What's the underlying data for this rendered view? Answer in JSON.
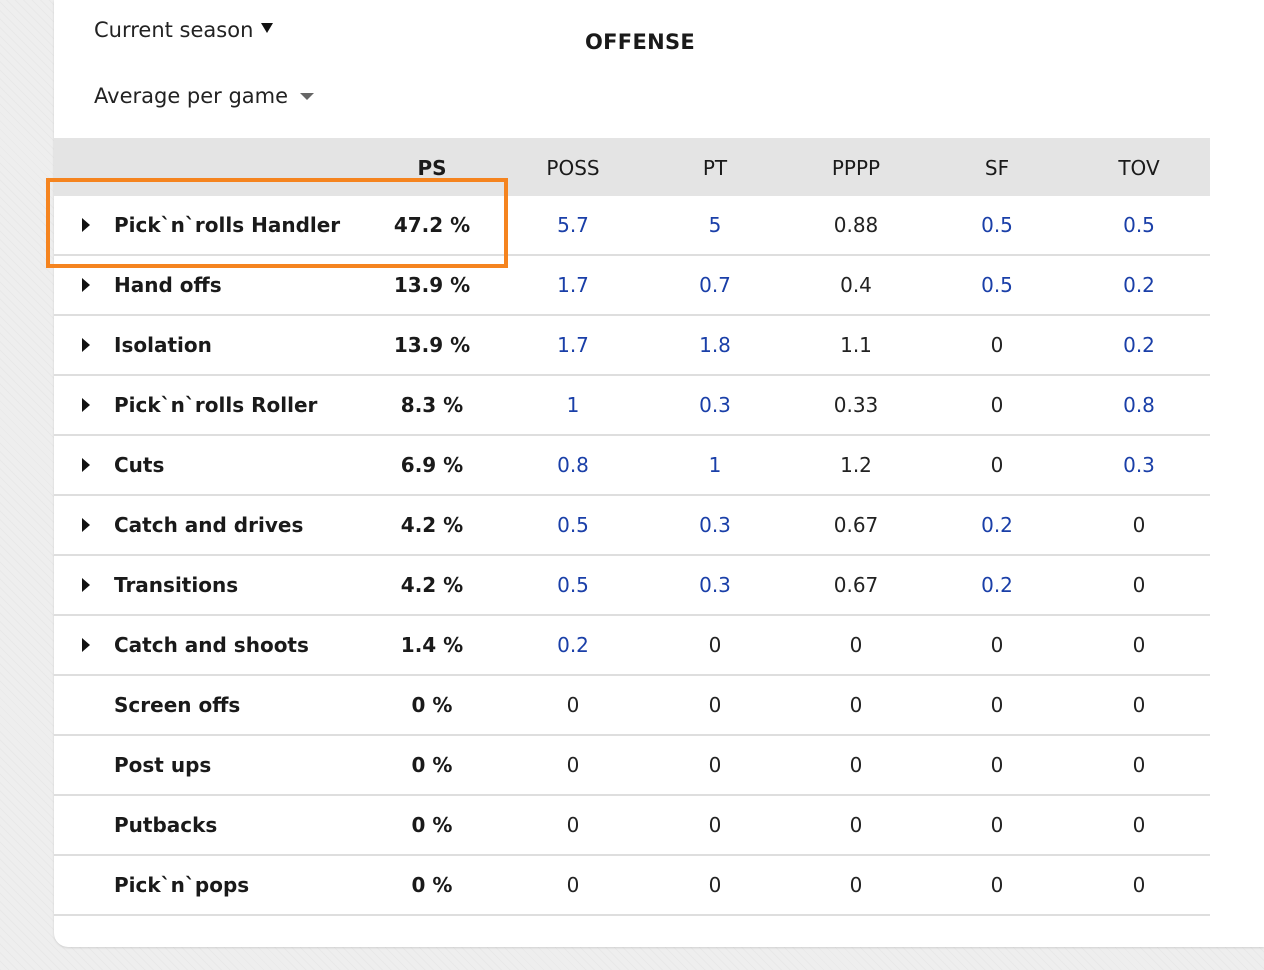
{
  "filters": {
    "season": "Current season",
    "mode": "Average per game"
  },
  "section_title": "OFFENSE",
  "colors": {
    "link": "#1a3fa8",
    "highlight": "#f5841f",
    "header_bg": "#e4e4e4"
  },
  "columns": [
    "PS",
    "POSS",
    "PT",
    "PPPP",
    "SF",
    "TOV"
  ],
  "rows": [
    {
      "name": "Pick`n`rolls Handler",
      "ps": "47.2 %",
      "poss": "5.7",
      "pt": "5",
      "pppp": "0.88",
      "sf": "0.5",
      "tov": "0.5",
      "expandable": true
    },
    {
      "name": "Hand offs",
      "ps": "13.9 %",
      "poss": "1.7",
      "pt": "0.7",
      "pppp": "0.4",
      "sf": "0.5",
      "tov": "0.2",
      "expandable": true
    },
    {
      "name": "Isolation",
      "ps": "13.9 %",
      "poss": "1.7",
      "pt": "1.8",
      "pppp": "1.1",
      "sf": "0",
      "tov": "0.2",
      "expandable": true
    },
    {
      "name": "Pick`n`rolls Roller",
      "ps": "8.3 %",
      "poss": "1",
      "pt": "0.3",
      "pppp": "0.33",
      "sf": "0",
      "tov": "0.8",
      "expandable": true
    },
    {
      "name": "Cuts",
      "ps": "6.9 %",
      "poss": "0.8",
      "pt": "1",
      "pppp": "1.2",
      "sf": "0",
      "tov": "0.3",
      "expandable": true
    },
    {
      "name": "Catch and drives",
      "ps": "4.2 %",
      "poss": "0.5",
      "pt": "0.3",
      "pppp": "0.67",
      "sf": "0.2",
      "tov": "0",
      "expandable": true
    },
    {
      "name": "Transitions",
      "ps": "4.2 %",
      "poss": "0.5",
      "pt": "0.3",
      "pppp": "0.67",
      "sf": "0.2",
      "tov": "0",
      "expandable": true
    },
    {
      "name": "Catch and shoots",
      "ps": "1.4 %",
      "poss": "0.2",
      "pt": "0",
      "pppp": "0",
      "sf": "0",
      "tov": "0",
      "expandable": true
    },
    {
      "name": "Screen offs",
      "ps": "0 %",
      "poss": "0",
      "pt": "0",
      "pppp": "0",
      "sf": "0",
      "tov": "0",
      "expandable": false
    },
    {
      "name": "Post ups",
      "ps": "0 %",
      "poss": "0",
      "pt": "0",
      "pppp": "0",
      "sf": "0",
      "tov": "0",
      "expandable": false
    },
    {
      "name": "Putbacks",
      "ps": "0 %",
      "poss": "0",
      "pt": "0",
      "pppp": "0",
      "sf": "0",
      "tov": "0",
      "expandable": false
    },
    {
      "name": "Pick`n`pops",
      "ps": "0 %",
      "poss": "0",
      "pt": "0",
      "pppp": "0",
      "sf": "0",
      "tov": "0",
      "expandable": false
    }
  ]
}
